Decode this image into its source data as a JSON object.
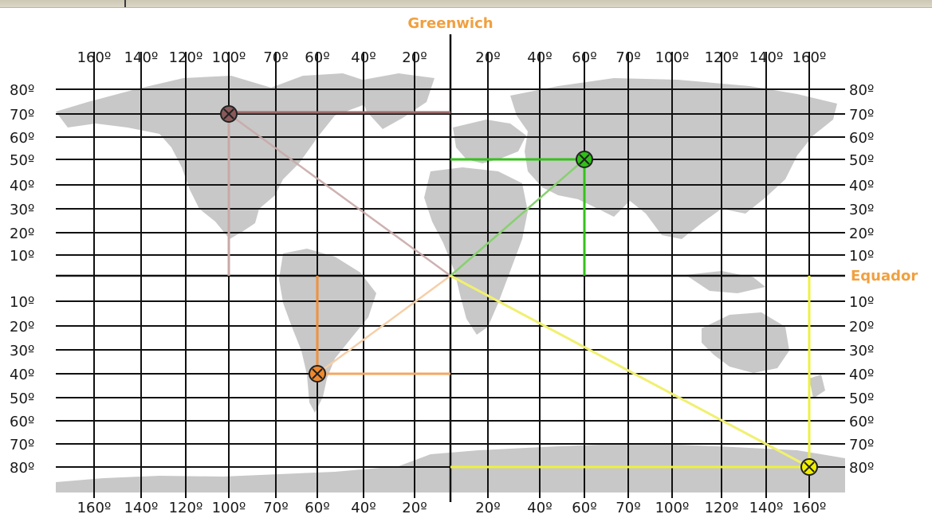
{
  "titles": {
    "meridian": "Greenwich",
    "equator": "Equador"
  },
  "lon_labels": {
    "west": [
      "160º",
      "140º",
      "120º",
      "100º",
      "70º",
      "60º",
      "40º",
      "20º"
    ],
    "east": [
      "20º",
      "40º",
      "60º",
      "70º",
      "100º",
      "120º",
      "140º",
      "160º"
    ]
  },
  "lat_labels": {
    "north": [
      "80º",
      "70º",
      "60º",
      "50º",
      "40º",
      "30º",
      "20º",
      "10º"
    ],
    "south": [
      "10º",
      "20º",
      "30º",
      "40º",
      "50º",
      "60º",
      "70º",
      "80º"
    ]
  },
  "points": [
    {
      "name": "point-northwest",
      "lat_label": "70º",
      "lat_hemisphere": "N",
      "lon_label": "100º",
      "lon_hemisphere": "W",
      "color": "#8a5a5a"
    },
    {
      "name": "point-northeast",
      "lat_label": "50º",
      "lat_hemisphere": "N",
      "lon_label": "60º",
      "lon_hemisphere": "E",
      "color": "#2ec214"
    },
    {
      "name": "point-southwest",
      "lat_label": "40º",
      "lat_hemisphere": "S",
      "lon_label": "60º",
      "lon_hemisphere": "W",
      "color": "#f08a2e"
    },
    {
      "name": "point-southeast",
      "lat_label": "80º",
      "lat_hemisphere": "S",
      "lon_label": "160º",
      "lon_hemisphere": "E",
      "color": "#f0f000"
    }
  ],
  "colors": {
    "land": "#c8c8c8",
    "grid": "#111111",
    "label_accent": "#f0a040"
  }
}
